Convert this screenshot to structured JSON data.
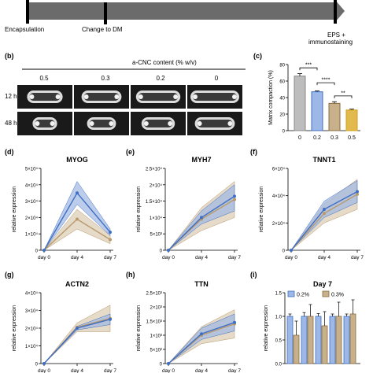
{
  "timeline": {
    "labels": [
      "Encapsulation",
      "Change to DM",
      "EPS +",
      "immunostaining"
    ]
  },
  "panel_b": {
    "letter": "(b)",
    "header": "a-CNC content (% w/v)",
    "columns": [
      "0.5",
      "0.3",
      "0.2",
      "0"
    ],
    "rows": [
      "12 h",
      "48 h"
    ]
  },
  "panels": {
    "c": "(c)",
    "d": "(d)",
    "e": "(e)",
    "f": "(f)",
    "g": "(g)",
    "h": "(h)",
    "i": "(i)"
  },
  "colors": {
    "blue": "#3f6fc4",
    "blue_fill": "#9fb8e2",
    "tan": "#b89a6c",
    "tan_fill": "#dccbb0",
    "grey": "#bdbdbd",
    "bar_blue": "#9db8e6",
    "bar_tan": "#c7b08a"
  },
  "chart_data": [
    {
      "id": "c",
      "type": "bar",
      "ylabel": "Matrix compaction (%)",
      "categories": [
        "0",
        "0.2",
        "0.3",
        "0.5"
      ],
      "values": [
        66,
        47,
        33,
        25
      ],
      "errors": [
        3,
        1,
        2,
        1
      ],
      "ylim": [
        0,
        80
      ],
      "yticks": [
        "0",
        "20",
        "40",
        "60",
        "80"
      ],
      "significance": [
        "***",
        "****",
        "**"
      ]
    },
    {
      "id": "d",
      "type": "line",
      "title": "MYOG",
      "ylabel": "relative expression",
      "categories": [
        "day 0",
        "day 4",
        "day 7"
      ],
      "ylim": [
        0,
        50000
      ],
      "yticks": [
        "0",
        "1×10⁴",
        "2×10⁴",
        "3×10⁴",
        "4×10⁴",
        "5×10⁴"
      ],
      "series": [
        {
          "values": [
            0,
            35000,
            11000
          ],
          "lower": [
            0,
            28000,
            9000
          ],
          "upper": [
            0,
            42000,
            13000
          ]
        },
        {
          "values": [
            0,
            19000,
            6500
          ],
          "lower": [
            0,
            13000,
            4000
          ],
          "upper": [
            0,
            25000,
            9000
          ]
        }
      ]
    },
    {
      "id": "e",
      "type": "line",
      "title": "MYH7",
      "ylabel": "relative expression",
      "categories": [
        "day 0",
        "day 4",
        "day 7"
      ],
      "ylim": [
        0,
        25000
      ],
      "yticks": [
        "0",
        "5×10³",
        "1×10⁴",
        "1.5×10⁴",
        "2×10⁴",
        "2.5×10⁴"
      ],
      "series": [
        {
          "values": [
            0,
            10000,
            16500
          ],
          "lower": [
            0,
            8000,
            12000
          ],
          "upper": [
            0,
            12000,
            20000
          ]
        },
        {
          "values": [
            0,
            9500,
            15500
          ],
          "lower": [
            0,
            6000,
            10000
          ],
          "upper": [
            0,
            13000,
            21000
          ]
        }
      ]
    },
    {
      "id": "f",
      "type": "line",
      "title": "TNNT1",
      "ylabel": "relative expression",
      "categories": [
        "day 0",
        "day 4",
        "day 7"
      ],
      "ylim": [
        0,
        60000
      ],
      "yticks": [
        "0",
        "2×10⁴",
        "4×10⁴",
        "6×10⁴"
      ],
      "series": [
        {
          "values": [
            0,
            30000,
            43000
          ],
          "lower": [
            0,
            24000,
            35000
          ],
          "upper": [
            0,
            36000,
            51000
          ]
        },
        {
          "values": [
            0,
            27000,
            41000
          ],
          "lower": [
            0,
            20000,
            30000
          ],
          "upper": [
            0,
            34000,
            52000
          ]
        }
      ]
    },
    {
      "id": "g",
      "type": "line",
      "title": "ACTN2",
      "ylabel": "relative expression",
      "categories": [
        "day 0",
        "day 4",
        "day 7"
      ],
      "ylim": [
        0,
        40000
      ],
      "yticks": [
        "0",
        "1×10⁴",
        "2×10⁴",
        "3×10⁴",
        "4×10⁴"
      ],
      "series": [
        {
          "values": [
            0,
            20000,
            25000
          ],
          "lower": [
            0,
            19000,
            22000
          ],
          "upper": [
            0,
            21000,
            28000
          ]
        },
        {
          "values": [
            0,
            20500,
            25500
          ],
          "lower": [
            0,
            18000,
            18000
          ],
          "upper": [
            0,
            23000,
            33000
          ]
        }
      ]
    },
    {
      "id": "h",
      "type": "line",
      "title": "TTN",
      "ylabel": "relative expression",
      "categories": [
        "day 0",
        "day 4",
        "day 7"
      ],
      "ylim": [
        0,
        2500
      ],
      "yticks": [
        "0",
        "5×10²",
        "1×10³",
        "1.5×10³",
        "2×10³",
        "2.5×10³"
      ],
      "series": [
        {
          "values": [
            0,
            1050,
            1450
          ],
          "lower": [
            0,
            850,
            1150
          ],
          "upper": [
            0,
            1250,
            1750
          ]
        },
        {
          "values": [
            0,
            1000,
            1400
          ],
          "lower": [
            0,
            700,
            900
          ],
          "upper": [
            0,
            1300,
            1900
          ]
        }
      ]
    },
    {
      "id": "i",
      "type": "bar",
      "title": "Day 7",
      "ylabel": "relative expression",
      "legend": [
        "0.2%",
        "0.3%"
      ],
      "categories": [
        "",
        "",
        "",
        "",
        ""
      ],
      "ylim": [
        0,
        1.5
      ],
      "yticks": [
        "0.0",
        "0.5",
        "1.0",
        "1.5"
      ],
      "series": [
        {
          "name": "0.2%",
          "values": [
            1.0,
            1.0,
            1.0,
            1.0,
            1.0
          ],
          "errors": [
            0.05,
            0.08,
            0.06,
            0.05,
            0.05
          ]
        },
        {
          "name": "0.3%",
          "values": [
            0.6,
            1.0,
            0.8,
            1.0,
            1.05
          ],
          "errors": [
            0.3,
            0.25,
            0.3,
            0.3,
            0.3
          ]
        }
      ]
    }
  ]
}
